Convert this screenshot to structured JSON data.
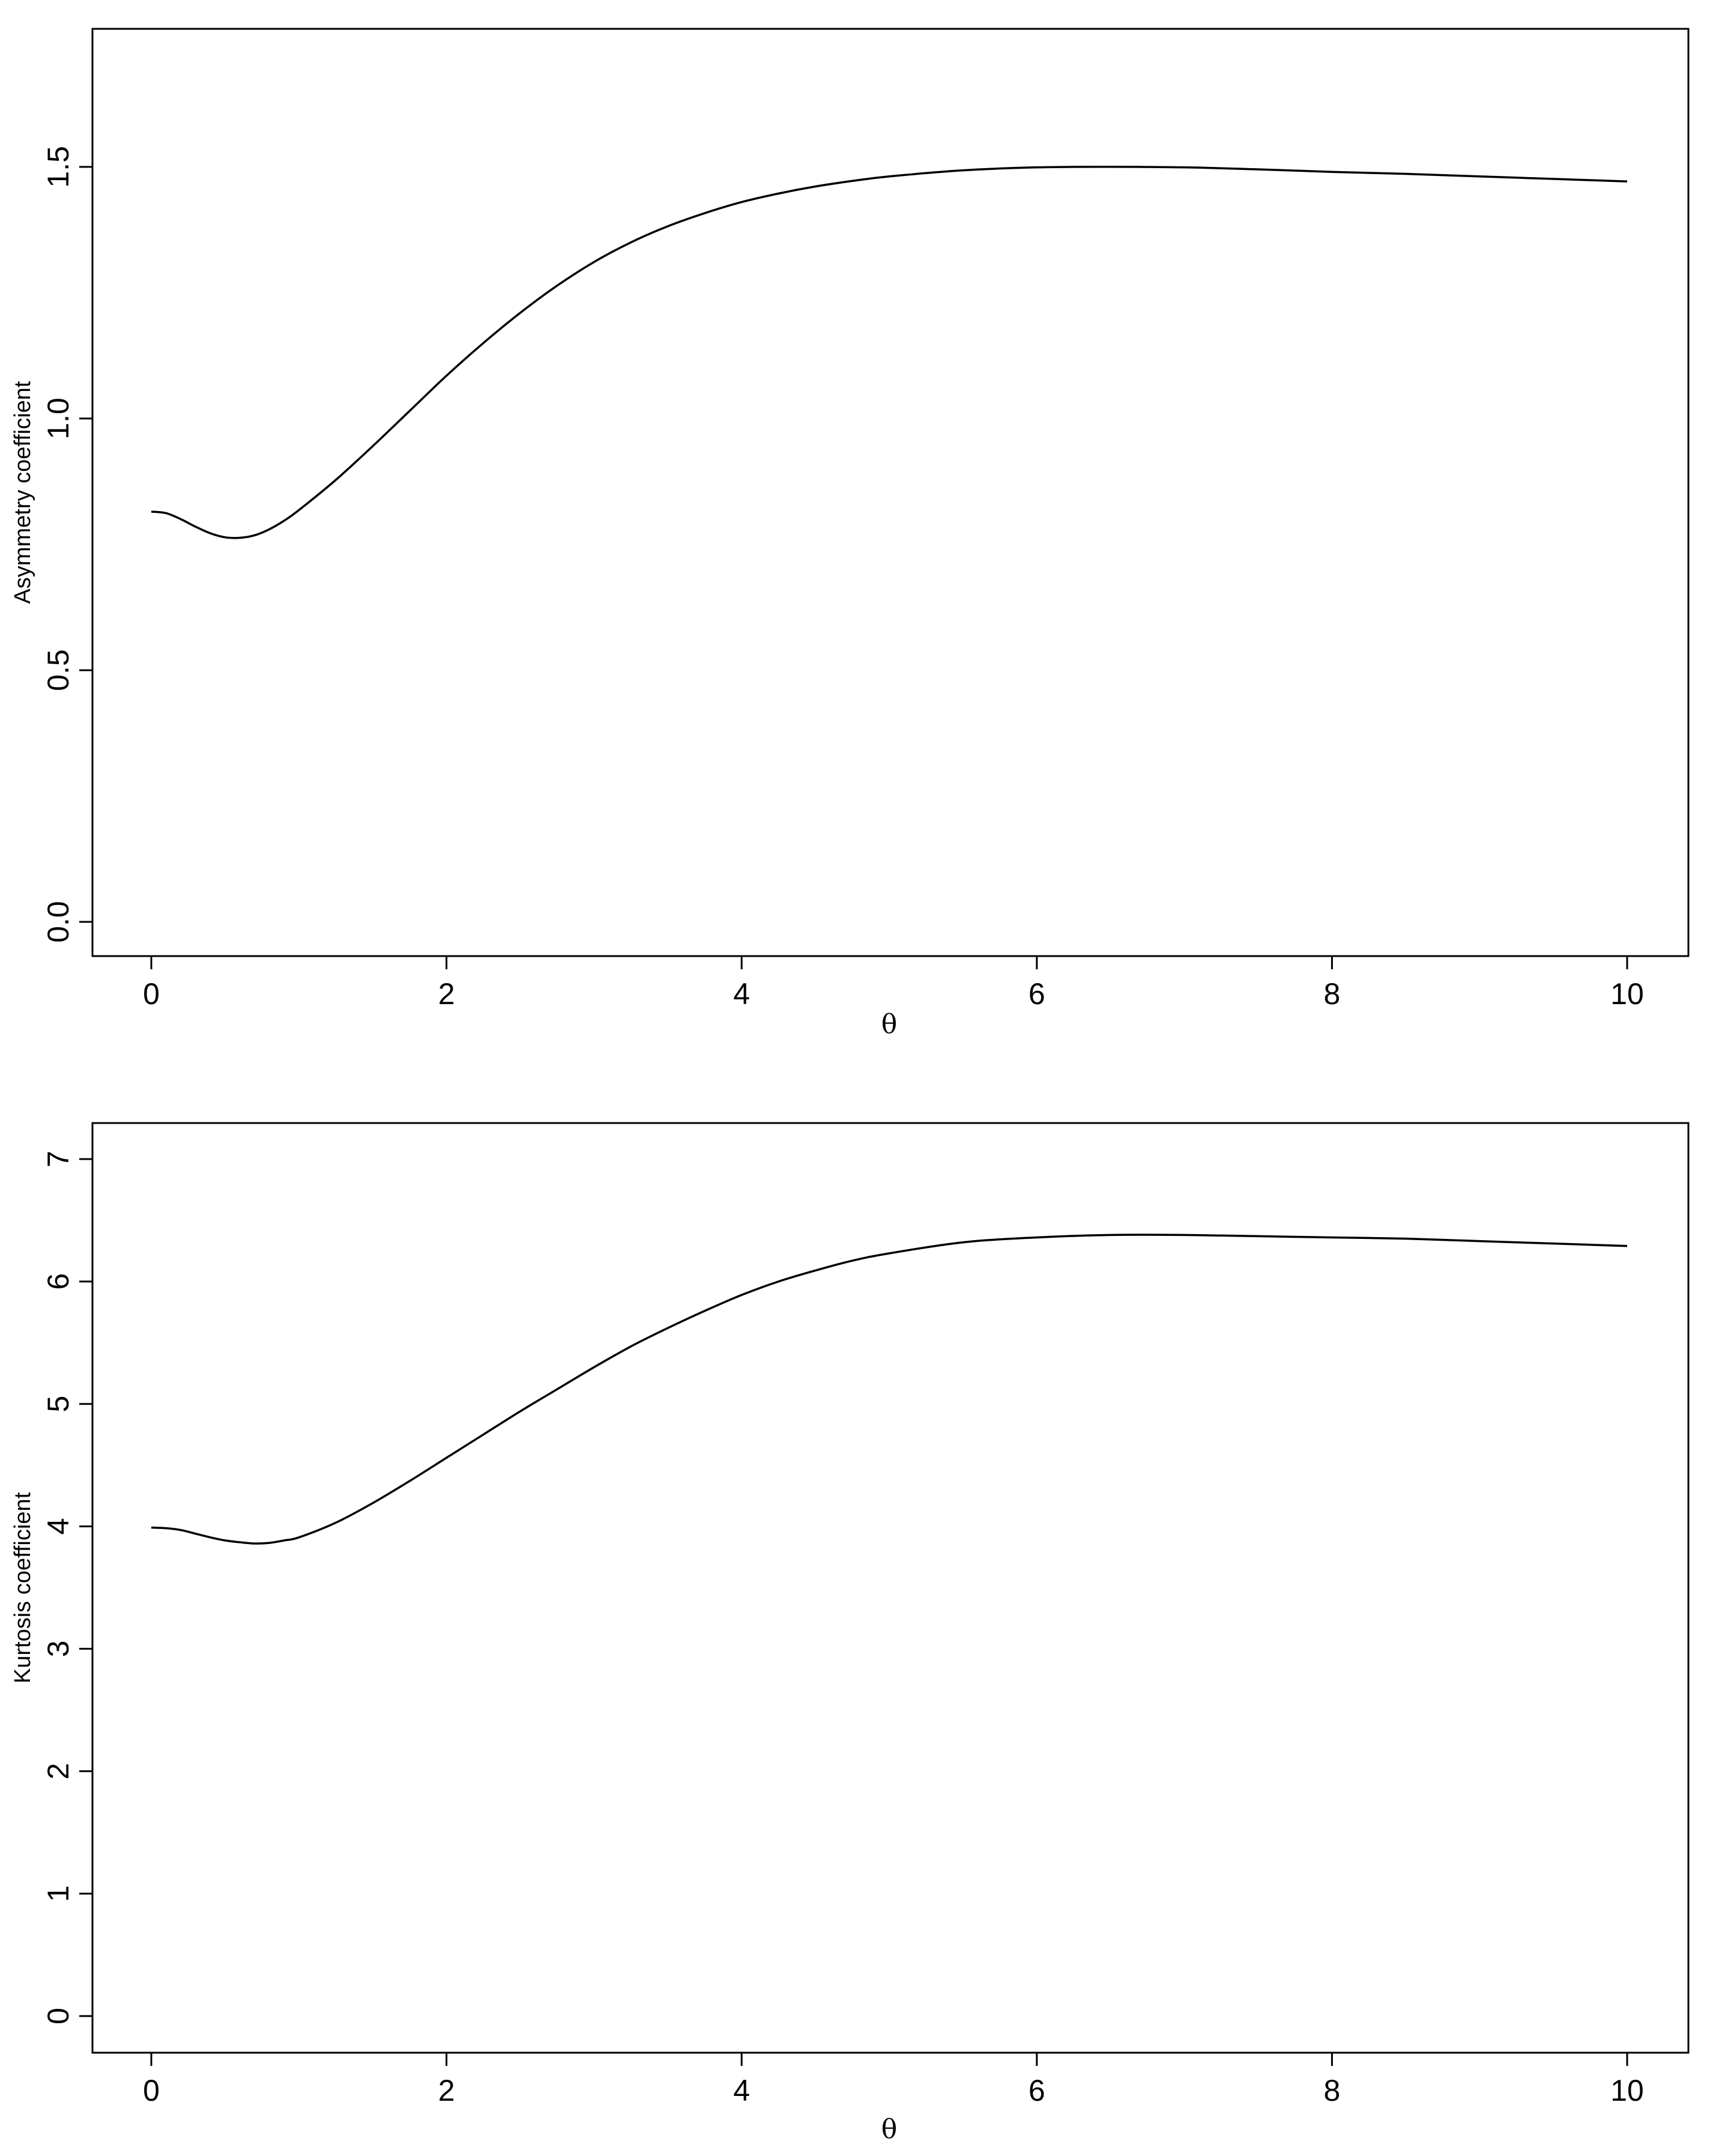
{
  "chart_data": [
    {
      "type": "line",
      "title": "",
      "xlabel": "θ",
      "ylabel": "Asymmetry coefficient",
      "xlim": [
        0,
        10
      ],
      "ylim": [
        0,
        1.6
      ],
      "xticks": [
        0,
        2,
        4,
        6,
        8,
        10
      ],
      "xtick_labels": [
        "0",
        "2",
        "4",
        "6",
        "8",
        "10"
      ],
      "yticks": [
        0,
        0.5,
        1,
        1.5
      ],
      "ytick_labels": [
        "0.0",
        "0.5",
        "1.0",
        "1.5"
      ],
      "grid": false,
      "legend": "none",
      "line_color": "#000000",
      "series": [
        {
          "x": [
            0,
            0.1,
            0.2,
            0.3,
            0.4,
            0.5,
            0.6,
            0.7,
            0.8,
            0.9,
            1.0,
            1.25,
            1.5,
            1.75,
            2.0,
            2.25,
            2.5,
            2.75,
            3.0,
            3.25,
            3.5,
            3.75,
            4.0,
            4.25,
            4.5,
            4.75,
            5.0,
            5.5,
            6.0,
            6.5,
            7.0,
            7.5,
            8.0,
            8.5,
            9.0,
            9.5,
            10.0
          ],
          "values": [
            0.815,
            0.812,
            0.8,
            0.785,
            0.772,
            0.764,
            0.763,
            0.768,
            0.78,
            0.797,
            0.818,
            0.878,
            0.945,
            1.015,
            1.085,
            1.15,
            1.21,
            1.264,
            1.311,
            1.35,
            1.382,
            1.408,
            1.43,
            1.447,
            1.461,
            1.472,
            1.481,
            1.493,
            1.499,
            1.5,
            1.499,
            1.495,
            1.49,
            1.486,
            1.481,
            1.476,
            1.471
          ]
        }
      ]
    },
    {
      "type": "line",
      "title": "",
      "xlabel": "θ",
      "ylabel": "Kurtosis coefficient",
      "xlim": [
        0,
        10
      ],
      "ylim": [
        0,
        7
      ],
      "xticks": [
        0,
        2,
        4,
        6,
        8,
        10
      ],
      "xtick_labels": [
        "0",
        "2",
        "4",
        "6",
        "8",
        "10"
      ],
      "yticks": [
        0,
        1,
        2,
        3,
        4,
        5,
        6,
        7
      ],
      "ytick_labels": [
        "0",
        "1",
        "2",
        "3",
        "4",
        "5",
        "6",
        "7"
      ],
      "grid": false,
      "legend": "none",
      "line_color": "#000000",
      "series": [
        {
          "x": [
            0,
            0.1,
            0.2,
            0.3,
            0.4,
            0.5,
            0.6,
            0.7,
            0.8,
            0.9,
            1.0,
            1.25,
            1.5,
            1.75,
            2.0,
            2.25,
            2.5,
            2.75,
            3.0,
            3.25,
            3.5,
            3.75,
            4.0,
            4.25,
            4.5,
            4.75,
            5.0,
            5.5,
            6.0,
            6.5,
            7.0,
            7.5,
            8.0,
            8.5,
            9.0,
            9.5,
            10.0
          ],
          "values": [
            3.99,
            3.985,
            3.97,
            3.94,
            3.91,
            3.885,
            3.87,
            3.86,
            3.865,
            3.885,
            3.91,
            4.03,
            4.19,
            4.37,
            4.56,
            4.75,
            4.94,
            5.12,
            5.3,
            5.47,
            5.62,
            5.76,
            5.89,
            6.0,
            6.09,
            6.17,
            6.23,
            6.32,
            6.36,
            6.38,
            6.38,
            6.37,
            6.36,
            6.35,
            6.33,
            6.31,
            6.29
          ]
        }
      ]
    }
  ]
}
